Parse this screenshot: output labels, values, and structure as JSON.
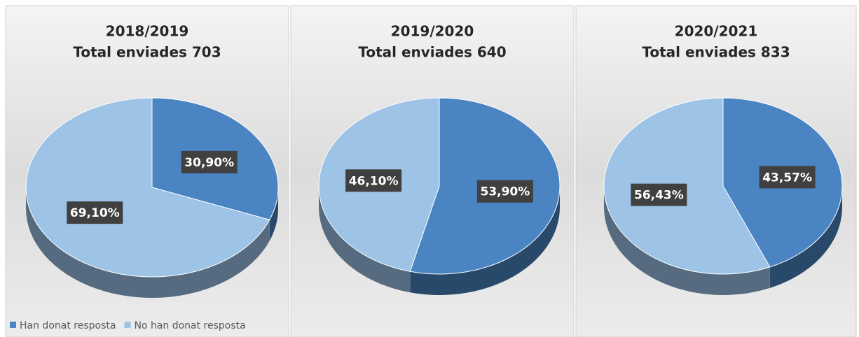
{
  "chart_data": [
    {
      "type": "pie",
      "title": "2018/2019",
      "subtitle": "Total enviades 703",
      "categories": [
        "Han donat resposta",
        "No han donat resposta"
      ],
      "values": [
        30.9,
        69.1
      ],
      "value_labels": [
        "30,90%",
        "69,10%"
      ],
      "colors": [
        "#4a84c2",
        "#9dc3e6"
      ],
      "legend": "bottom-left"
    },
    {
      "type": "pie",
      "title": "2019/2020",
      "subtitle": "Total enviades 640",
      "values": [
        53.9,
        46.1
      ],
      "value_labels": [
        "53,90%",
        "46,10%"
      ],
      "colors": [
        "#4a84c2",
        "#9dc3e6"
      ]
    },
    {
      "type": "pie",
      "title": "2020/2021",
      "subtitle": "Total enviades 833",
      "values": [
        43.57,
        56.43
      ],
      "value_labels": [
        "43,57%",
        "56,43%"
      ],
      "colors": [
        "#4a84c2",
        "#9dc3e6"
      ]
    }
  ]
}
